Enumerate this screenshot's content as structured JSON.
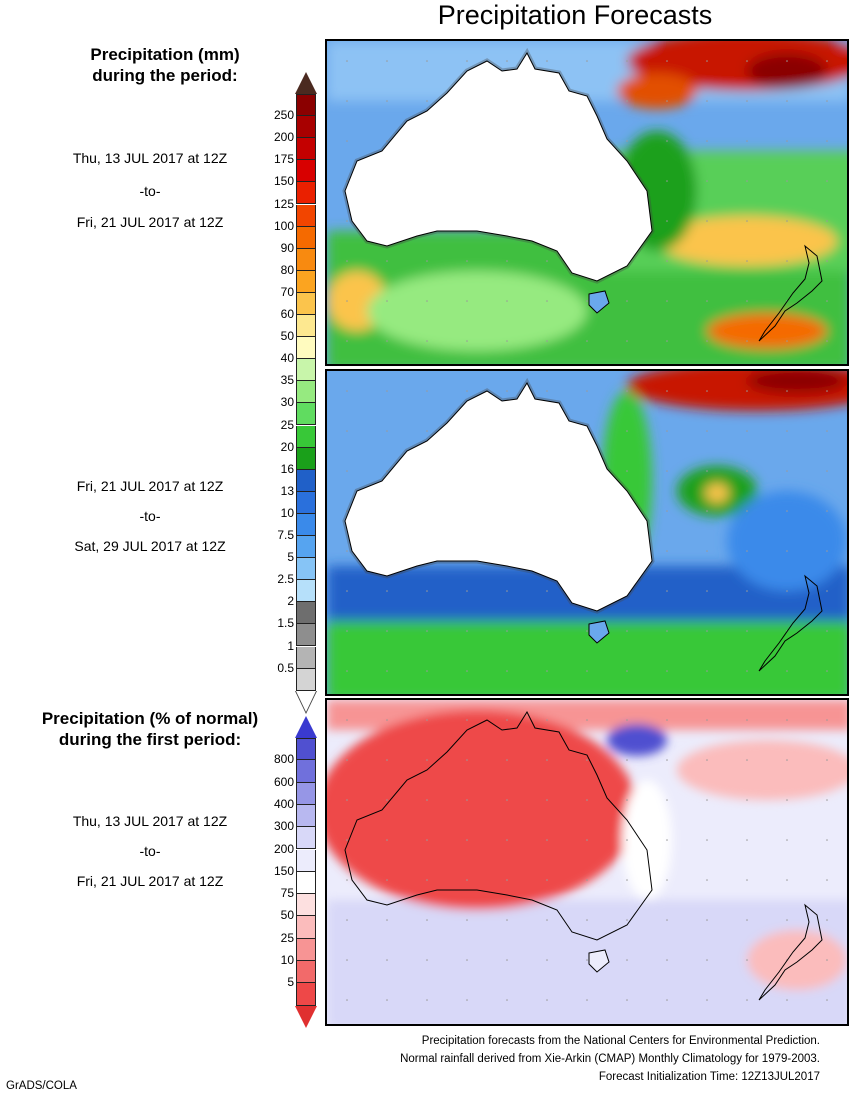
{
  "title": "Precipitation Forecasts",
  "legend_top": {
    "heading_line1": "Precipitation (mm)",
    "heading_line2": "during the period:",
    "levels": [
      "250",
      "200",
      "175",
      "150",
      "125",
      "100",
      "90",
      "80",
      "70",
      "60",
      "50",
      "40",
      "35",
      "30",
      "25",
      "20",
      "16",
      "13",
      "10",
      "7.5",
      "5",
      "2.5",
      "2",
      "1.5",
      "1",
      "0.5"
    ],
    "colors": [
      "#8b0000",
      "#a80000",
      "#c40000",
      "#d80000",
      "#ea2000",
      "#f24500",
      "#f56a00",
      "#f88a10",
      "#fba420",
      "#fbc44c",
      "#fde890",
      "#fffbbf",
      "#c8f5aa",
      "#96ea80",
      "#60dc60",
      "#38c838",
      "#1aa01a",
      "#2060c8",
      "#2a70dc",
      "#3a8aea",
      "#56a4f0",
      "#86c4f6",
      "#b6e0fa",
      "#6e6e6e",
      "#8e8e8e",
      "#b4b4b4",
      "#d4d4d4"
    ],
    "top_arrow_color": "#4b2a20"
  },
  "period1": {
    "start": "Thu, 13 JUL 2017 at 12Z",
    "sep": "-to-",
    "end": "Fri, 21 JUL 2017 at 12Z"
  },
  "period2": {
    "start": "Fri, 21 JUL 2017 at 12Z",
    "sep": "-to-",
    "end": "Sat, 29 JUL 2017 at 12Z"
  },
  "legend_bottom": {
    "heading_line1": "Precipitation (% of normal)",
    "heading_line2": "during the first period:",
    "levels": [
      "800",
      "600",
      "400",
      "300",
      "200",
      "150",
      "75",
      "50",
      "25",
      "10",
      "5"
    ],
    "colors": [
      "#5050d0",
      "#7070dc",
      "#9696e6",
      "#b8b8f0",
      "#d8d8f8",
      "#ececfc",
      "#ffffff",
      "#fde0e0",
      "#fbbcbc",
      "#f79494",
      "#f26a6a",
      "#ee4848"
    ],
    "top_arrow_color": "#3a3ad0",
    "bottom_arrow_color": "#e03030"
  },
  "period3": {
    "start": "Thu, 13 JUL 2017 at 12Z",
    "sep": "-to-",
    "end": "Fri, 21 JUL 2017 at 12Z"
  },
  "footer": {
    "line1": "Precipitation forecasts from the National Centers for Environmental Prediction.",
    "line2": "Normal rainfall derived from Xie-Arkin (CMAP) Monthly Climatology for 1979-2003.",
    "line3": "Forecast Initialization Time: 12Z13JUL2017"
  },
  "credit": "GrADS/COLA"
}
